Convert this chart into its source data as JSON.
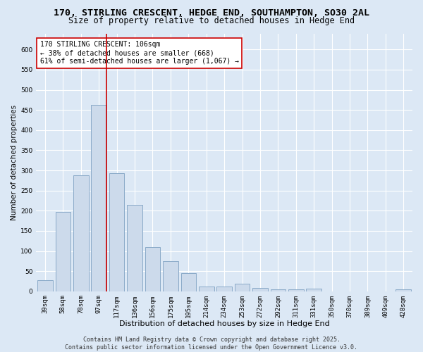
{
  "title": "170, STIRLING CRESCENT, HEDGE END, SOUTHAMPTON, SO30 2AL",
  "subtitle": "Size of property relative to detached houses in Hedge End",
  "xlabel": "Distribution of detached houses by size in Hedge End",
  "ylabel": "Number of detached properties",
  "categories": [
    "39sqm",
    "58sqm",
    "78sqm",
    "97sqm",
    "117sqm",
    "136sqm",
    "156sqm",
    "175sqm",
    "195sqm",
    "214sqm",
    "234sqm",
    "253sqm",
    "272sqm",
    "292sqm",
    "311sqm",
    "331sqm",
    "350sqm",
    "370sqm",
    "389sqm",
    "409sqm",
    "428sqm"
  ],
  "values": [
    28,
    197,
    288,
    462,
    293,
    215,
    110,
    74,
    45,
    12,
    11,
    18,
    9,
    5,
    5,
    6,
    0,
    0,
    0,
    0,
    5
  ],
  "bar_color": "#ccdaeb",
  "bar_edge_color": "#8aaac8",
  "background_color": "#dce8f5",
  "grid_color": "#ffffff",
  "vline_color": "#cc0000",
  "vline_x_index": 3,
  "annotation_text": "170 STIRLING CRESCENT: 106sqm\n← 38% of detached houses are smaller (668)\n61% of semi-detached houses are larger (1,067) →",
  "annotation_box_facecolor": "#ffffff",
  "annotation_box_edgecolor": "#cc0000",
  "ylim": [
    0,
    640
  ],
  "yticks": [
    0,
    50,
    100,
    150,
    200,
    250,
    300,
    350,
    400,
    450,
    500,
    550,
    600
  ],
  "footer_text": "Contains HM Land Registry data © Crown copyright and database right 2025.\nContains public sector information licensed under the Open Government Licence v3.0.",
  "title_fontsize": 9.5,
  "subtitle_fontsize": 8.5,
  "xlabel_fontsize": 8,
  "ylabel_fontsize": 7.5,
  "tick_fontsize": 6.5,
  "annotation_fontsize": 7,
  "footer_fontsize": 6
}
